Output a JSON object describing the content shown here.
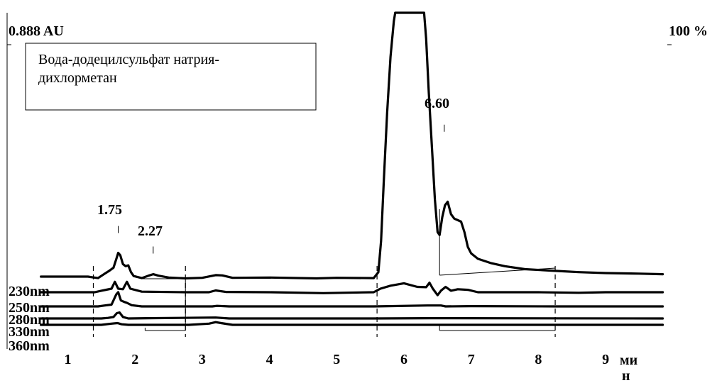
{
  "chart_data": {
    "type": "line",
    "ylabel_left": "0.888 AU",
    "ylabel_right": "100 %",
    "xunit": "ми\nн",
    "x_ticks": [
      "1",
      "2",
      "3",
      "4",
      "5",
      "6",
      "7",
      "8",
      "9"
    ],
    "xlim": [
      0.6,
      9.85
    ],
    "ylim_au": [
      0,
      0.888
    ],
    "legend_box": [
      "Вода-додецилсульфат натрия-",
      "дихлорметан"
    ],
    "peak_labels": [
      {
        "text": "1.75",
        "x": 1.75,
        "y": 0.137
      },
      {
        "text": "2.27",
        "x": 2.27,
        "y": 0.068
      },
      {
        "text": "6.60",
        "x": 6.6,
        "y": 0.478
      }
    ],
    "dashed_markers_x": [
      1.38,
      2.75,
      5.6,
      8.25
    ],
    "series": [
      {
        "name": "",
        "points": [
          [
            0.6,
            0.0
          ],
          [
            1.3,
            0.0
          ],
          [
            1.45,
            -0.005
          ],
          [
            1.55,
            0.01
          ],
          [
            1.62,
            0.02
          ],
          [
            1.68,
            0.03
          ],
          [
            1.73,
            0.065
          ],
          [
            1.75,
            0.08
          ],
          [
            1.78,
            0.072
          ],
          [
            1.82,
            0.042
          ],
          [
            1.86,
            0.035
          ],
          [
            1.9,
            0.038
          ],
          [
            1.94,
            0.015
          ],
          [
            1.98,
            0.002
          ],
          [
            2.1,
            -0.005
          ],
          [
            2.2,
            0.003
          ],
          [
            2.27,
            0.008
          ],
          [
            2.35,
            0.003
          ],
          [
            2.5,
            -0.003
          ],
          [
            2.75,
            -0.006
          ],
          [
            3.0,
            -0.004
          ],
          [
            3.2,
            0.005
          ],
          [
            3.3,
            0.004
          ],
          [
            3.45,
            -0.004
          ],
          [
            4.0,
            -0.003
          ],
          [
            4.7,
            -0.006
          ],
          [
            5.0,
            -0.004
          ],
          [
            5.55,
            -0.005
          ],
          [
            5.62,
            0.015
          ],
          [
            5.66,
            0.12
          ],
          [
            5.7,
            0.32
          ],
          [
            5.75,
            0.55
          ],
          [
            5.8,
            0.74
          ],
          [
            5.85,
            0.86
          ],
          [
            5.87,
            0.888
          ],
          [
            6.3,
            0.888
          ],
          [
            6.33,
            0.8
          ],
          [
            6.37,
            0.62
          ],
          [
            6.42,
            0.42
          ],
          [
            6.46,
            0.26
          ],
          [
            6.5,
            0.15
          ],
          [
            6.53,
            0.14
          ],
          [
            6.57,
            0.2
          ],
          [
            6.61,
            0.24
          ],
          [
            6.65,
            0.252
          ],
          [
            6.7,
            0.21
          ],
          [
            6.75,
            0.195
          ],
          [
            6.8,
            0.19
          ],
          [
            6.85,
            0.185
          ],
          [
            6.9,
            0.15
          ],
          [
            6.95,
            0.1
          ],
          [
            7.0,
            0.078
          ],
          [
            7.1,
            0.06
          ],
          [
            7.3,
            0.045
          ],
          [
            7.5,
            0.035
          ],
          [
            7.8,
            0.025
          ],
          [
            8.2,
            0.02
          ],
          [
            8.6,
            0.015
          ],
          [
            9.0,
            0.012
          ],
          [
            9.5,
            0.01
          ],
          [
            9.85,
            0.008
          ]
        ]
      },
      {
        "name": "230nm",
        "points": [
          [
            0.6,
            0.0
          ],
          [
            1.4,
            0.0
          ],
          [
            1.5,
            0.005
          ],
          [
            1.65,
            0.012
          ],
          [
            1.7,
            0.035
          ],
          [
            1.75,
            0.012
          ],
          [
            1.82,
            0.01
          ],
          [
            1.88,
            0.035
          ],
          [
            1.93,
            0.012
          ],
          [
            2.1,
            0.002
          ],
          [
            2.75,
            0.0
          ],
          [
            3.1,
            0.0
          ],
          [
            3.2,
            0.006
          ],
          [
            3.35,
            0.001
          ],
          [
            4.0,
            0.0
          ],
          [
            4.8,
            -0.003
          ],
          [
            5.55,
            0.0
          ],
          [
            5.65,
            0.012
          ],
          [
            5.8,
            0.022
          ],
          [
            6.0,
            0.03
          ],
          [
            6.2,
            0.018
          ],
          [
            6.33,
            0.017
          ],
          [
            6.38,
            0.032
          ],
          [
            6.43,
            0.012
          ],
          [
            6.5,
            -0.01
          ],
          [
            6.55,
            0.005
          ],
          [
            6.62,
            0.018
          ],
          [
            6.7,
            0.005
          ],
          [
            6.8,
            0.01
          ],
          [
            6.95,
            0.008
          ],
          [
            7.1,
            0.0
          ],
          [
            8.0,
            0.0
          ],
          [
            8.6,
            -0.002
          ],
          [
            9.0,
            0.0
          ],
          [
            9.85,
            0.0
          ]
        ]
      },
      {
        "name": "250nm",
        "points": [
          [
            0.6,
            0.0
          ],
          [
            1.45,
            0.0
          ],
          [
            1.55,
            0.003
          ],
          [
            1.65,
            0.006
          ],
          [
            1.72,
            0.04
          ],
          [
            1.75,
            0.048
          ],
          [
            1.79,
            0.02
          ],
          [
            1.84,
            0.015
          ],
          [
            1.88,
            0.012
          ],
          [
            1.95,
            0.004
          ],
          [
            2.1,
            0.0
          ],
          [
            3.15,
            0.0
          ],
          [
            3.22,
            0.002
          ],
          [
            3.4,
            0.0
          ],
          [
            5.55,
            0.0
          ],
          [
            6.35,
            0.003
          ],
          [
            6.55,
            0.003
          ],
          [
            6.62,
            0.0
          ],
          [
            7.0,
            0.001
          ],
          [
            8.3,
            0.0
          ],
          [
            9.85,
            0.0
          ]
        ]
      },
      {
        "name": "280nm",
        "points": [
          [
            0.6,
            0.0
          ],
          [
            1.5,
            0.0
          ],
          [
            1.6,
            0.002
          ],
          [
            1.68,
            0.005
          ],
          [
            1.73,
            0.018
          ],
          [
            1.77,
            0.02
          ],
          [
            1.82,
            0.005
          ],
          [
            1.9,
            0.0
          ],
          [
            2.2,
            0.001
          ],
          [
            3.2,
            0.003
          ],
          [
            3.4,
            0.0
          ],
          [
            5.55,
            0.0
          ],
          [
            6.4,
            0.001
          ],
          [
            9.85,
            0.0
          ]
        ]
      },
      {
        "name": "330nm",
        "points": [
          [
            0.6,
            0.0
          ],
          [
            1.5,
            0.0
          ],
          [
            1.65,
            0.004
          ],
          [
            1.74,
            0.006
          ],
          [
            1.8,
            0.002
          ],
          [
            1.9,
            0.0
          ],
          [
            2.8,
            0.0
          ],
          [
            3.1,
            0.004
          ],
          [
            3.2,
            0.009
          ],
          [
            3.28,
            0.006
          ],
          [
            3.45,
            0.0
          ],
          [
            5.55,
            0.0
          ],
          [
            9.85,
            0.0
          ]
        ]
      },
      {
        "name": "360nm",
        "points": []
      }
    ]
  }
}
